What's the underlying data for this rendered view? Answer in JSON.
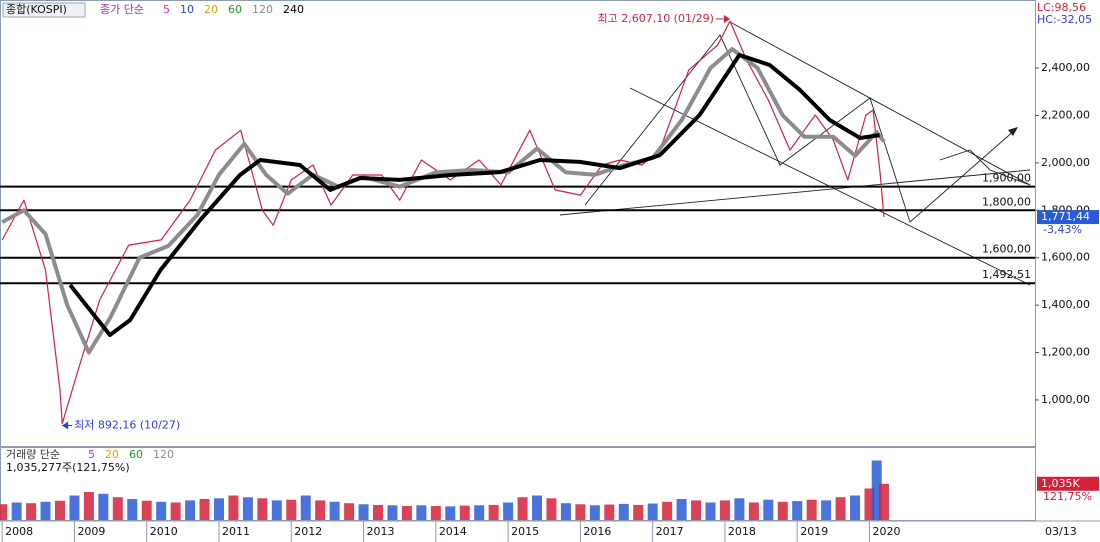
{
  "chart_data": {
    "type": "line",
    "symbol": "종합(KOSPI)",
    "legend_title": "종가 단순",
    "legend": [
      {
        "name": "5",
        "color": "#e0309a"
      },
      {
        "name": "10",
        "color": "#2a3fd6"
      },
      {
        "name": "20",
        "color": "#e8a000"
      },
      {
        "name": "60",
        "color": "#1f9a2a"
      },
      {
        "name": "120",
        "color": "#8c8c8c"
      },
      {
        "name": "240",
        "color": "#000000"
      }
    ],
    "lc": "LC:98,56",
    "hc": "HC:-32,05",
    "xlim": [
      2007.97,
      2022.29
    ],
    "xticks": [
      2008,
      2009,
      2010,
      2011,
      2012,
      2013,
      2014,
      2015,
      2016,
      2017,
      2018,
      2019,
      2020
    ],
    "x_end_label": "03/13",
    "ylim": [
      810,
      2687
    ],
    "yticks": [
      {
        "value": 1000,
        "label": "1,000,00"
      },
      {
        "value": 1200,
        "label": "1,200,00"
      },
      {
        "value": 1400,
        "label": "1,400,00"
      },
      {
        "value": 1600,
        "label": "1,600,00"
      },
      {
        "value": 1800,
        "label": "1,800,00"
      },
      {
        "value": 2000,
        "label": "2,000,00"
      },
      {
        "value": 2200,
        "label": "2,200,00"
      },
      {
        "value": 2400,
        "label": "2,400,00"
      }
    ],
    "series": [
      {
        "color": "#d4213b",
        "width": 1.2,
        "x": [
          2008.0,
          2008.3,
          2008.6,
          2008.8,
          2008.83,
          2009.05,
          2009.35,
          2009.75,
          2010.2,
          2010.6,
          2010.95,
          2011.3,
          2011.6,
          2011.75,
          2012.0,
          2012.3,
          2012.55,
          2012.85,
          2013.25,
          2013.5,
          2013.8,
          2014.2,
          2014.6,
          2014.9,
          2015.3,
          2015.65,
          2016.0,
          2016.3,
          2016.55,
          2016.85,
          2017.1,
          2017.5,
          2017.9,
          2018.07,
          2018.3,
          2018.6,
          2018.9,
          2019.25,
          2019.5,
          2019.7,
          2019.95,
          2020.05,
          2020.15,
          2020.2
        ],
        "values": [
          1675,
          1843,
          1548,
          1042,
          900,
          1126,
          1422,
          1653,
          1675,
          1843,
          2054,
          2138,
          1800,
          1737,
          1928,
          1991,
          1822,
          1949,
          1949,
          1843,
          2012,
          1928,
          2012,
          1907,
          2138,
          1886,
          1864,
          1991,
          2012,
          1991,
          2054,
          2392,
          2497,
          2598,
          2434,
          2265,
          2054,
          2202,
          2096,
          1928,
          2202,
          2223,
          1949,
          1771.44
        ]
      },
      {
        "color": "#8c8c8c",
        "width": 4,
        "x": [
          2008.0,
          2008.3,
          2008.6,
          2008.9,
          2009.2,
          2009.5,
          2009.9,
          2010.3,
          2010.7,
          2011.0,
          2011.35,
          2011.65,
          2011.95,
          2012.3,
          2012.65,
          2013.0,
          2013.5,
          2014.0,
          2014.5,
          2015.0,
          2015.4,
          2015.8,
          2016.2,
          2016.6,
          2017.0,
          2017.4,
          2017.8,
          2018.1,
          2018.45,
          2018.8,
          2019.1,
          2019.5,
          2019.8,
          2020.1,
          2020.2
        ],
        "values": [
          1750,
          1800,
          1700,
          1400,
          1200,
          1350,
          1600,
          1650,
          1780,
          1950,
          2080,
          1950,
          1870,
          1950,
          1900,
          1940,
          1900,
          1960,
          1970,
          1960,
          2060,
          1960,
          1950,
          1990,
          2020,
          2180,
          2400,
          2480,
          2400,
          2200,
          2110,
          2110,
          2030,
          2130,
          2090
        ]
      },
      {
        "color": "#000000",
        "width": 4,
        "x": [
          2008.94,
          2009.49,
          2009.77,
          2010.19,
          2010.74,
          2011.29,
          2011.57,
          2012.12,
          2012.54,
          2012.95,
          2013.5,
          2014.2,
          2014.89,
          2015.44,
          2015.99,
          2016.55,
          2017.1,
          2017.65,
          2018.2,
          2018.62,
          2019.04,
          2019.45,
          2019.87,
          2020.14
        ],
        "values": [
          1485,
          1274,
          1337,
          1548,
          1759,
          1949,
          2012,
          1991,
          1886,
          1936,
          1928,
          1949,
          1961,
          2012,
          2004,
          1978,
          2033,
          2202,
          2455,
          2413,
          2307,
          2181,
          2105,
          2117
        ]
      }
    ],
    "levels": [
      {
        "value": 1900,
        "label": "1,900,00"
      },
      {
        "value": 1800,
        "label": "1,800,00"
      },
      {
        "value": 1600,
        "label": "1,600,00"
      },
      {
        "value": 1492.51,
        "label": "1,492,51"
      }
    ],
    "high_annotation": {
      "text": "최고 2,607,10 (01/29)",
      "x": 2018.07,
      "value": 2607.1
    },
    "low_annotation": {
      "text": "최저 892,16 (10/27)",
      "x": 2008.83,
      "value": 892.16
    },
    "current": {
      "value": 1771.44,
      "label": "1,771,44",
      "change": "-3,43%"
    },
    "volume": {
      "title": "거래량 단순",
      "legend": [
        {
          "name": "5",
          "color": "#e0309a"
        },
        {
          "name": "20",
          "color": "#e8a000"
        },
        {
          "name": "60",
          "color": "#1f9a2a"
        },
        {
          "name": "120",
          "color": "#8c8c8c"
        }
      ],
      "summary": "1,035,277주(121,75%)",
      "color": "#d4213b",
      "ylim": [
        0,
        2000
      ],
      "x": [
        2008.0,
        2008.2,
        2008.4,
        2008.6,
        2008.8,
        2009.0,
        2009.2,
        2009.4,
        2009.6,
        2009.8,
        2010.0,
        2010.2,
        2010.4,
        2010.6,
        2010.8,
        2011.0,
        2011.2,
        2011.4,
        2011.6,
        2011.8,
        2012.0,
        2012.2,
        2012.4,
        2012.6,
        2012.8,
        2013.0,
        2013.2,
        2013.4,
        2013.6,
        2013.8,
        2014.0,
        2014.2,
        2014.4,
        2014.6,
        2014.8,
        2015.0,
        2015.2,
        2015.4,
        2015.6,
        2015.8,
        2016.0,
        2016.2,
        2016.4,
        2016.6,
        2016.8,
        2017.0,
        2017.2,
        2017.4,
        2017.6,
        2017.8,
        2018.0,
        2018.2,
        2018.4,
        2018.6,
        2018.8,
        2019.0,
        2019.2,
        2019.4,
        2019.6,
        2019.8,
        2020.0,
        2020.1,
        2020.2
      ],
      "values": [
        450,
        500,
        480,
        520,
        550,
        700,
        800,
        750,
        650,
        600,
        550,
        520,
        500,
        560,
        600,
        620,
        700,
        650,
        620,
        560,
        580,
        700,
        560,
        520,
        480,
        450,
        430,
        420,
        400,
        420,
        400,
        390,
        410,
        420,
        430,
        500,
        650,
        700,
        620,
        480,
        450,
        420,
        440,
        460,
        430,
        470,
        520,
        600,
        560,
        500,
        560,
        620,
        500,
        580,
        520,
        540,
        580,
        560,
        650,
        700,
        900,
        1700,
        1035
      ],
      "current": {
        "value": 1035,
        "label": "1,035K",
        "ratio": "121,75%"
      }
    }
  }
}
